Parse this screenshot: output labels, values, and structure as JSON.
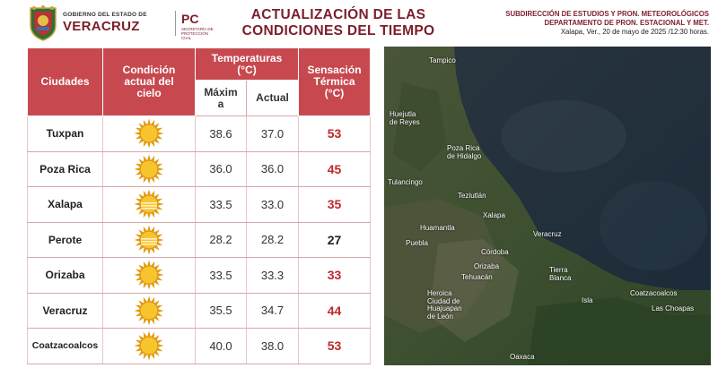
{
  "header": {
    "gob_line1": "GOBIERNO DEL ESTADO DE",
    "gob_line2": "VERACRUZ",
    "pc_mark": "PC",
    "pc_sub": "SECRETARÍA DE PROTECCIÓN CIVIL",
    "title_line1": "ACTUALIZACIÓN DE LAS",
    "title_line2": "CONDICIONES DEL TIEMPO",
    "sub_line1": "SUBDIRECCIÓN DE ESTUDIOS Y PRON. METEOROLÓGICOS",
    "sub_line2": "DEPARTAMENTO DE PRON.  ESTACIONAL Y MET.",
    "date_line": "Xalapa, Ver., 20 de mayo de 2025 /12:30 horas."
  },
  "table": {
    "col_city": "Ciudades",
    "col_condition_1": "Condición",
    "col_condition_2": "actual del",
    "col_condition_3": "cielo",
    "col_temps_1": "Temperaturas",
    "col_temps_2": "(°C)",
    "col_max_1": "Máxim",
    "col_max_2": "a",
    "col_actual": "Actual",
    "col_sens_1": "Sensación",
    "col_sens_2": "Térmica",
    "col_sens_3": "(°C)",
    "rows": [
      {
        "city": "Tuxpan",
        "icon": "sun-icon",
        "max": "38.6",
        "actual": "37.0",
        "sens": "53",
        "sens_color": "#c0272d"
      },
      {
        "city": "Poza Rica",
        "icon": "sun-icon",
        "max": "36.0",
        "actual": "36.0",
        "sens": "45",
        "sens_color": "#c0272d"
      },
      {
        "city": "Xalapa",
        "icon": "hazy-sun-icon",
        "max": "33.5",
        "actual": "33.0",
        "sens": "35",
        "sens_color": "#c0272d"
      },
      {
        "city": "Perote",
        "icon": "hazy-sun-icon",
        "max": "28.2",
        "actual": "28.2",
        "sens": "27",
        "sens_color": "#222222"
      },
      {
        "city": "Orizaba",
        "icon": "sun-icon",
        "max": "33.5",
        "actual": "33.3",
        "sens": "33",
        "sens_color": "#c0272d"
      },
      {
        "city": "Veracruz",
        "icon": "sun-icon",
        "max": "35.5",
        "actual": "34.7",
        "sens": "44",
        "sens_color": "#c0272d"
      },
      {
        "city": "Coatzacoalcos",
        "icon": "sun-icon",
        "max": "40.0",
        "actual": "38.0",
        "sens": "53",
        "sens_color": "#c0272d"
      }
    ]
  },
  "map": {
    "labels": {
      "tampico": "Tampico",
      "huejutla": "Huejutla\nde Reyes",
      "pozarica": "Poza Rica\nde Hidalgo",
      "tulancingo": "Tulancingo",
      "teziutlan": "Teziutlán",
      "xalapa": "Xalapa",
      "huamantla": "Huamantla",
      "puebla": "Puebla",
      "veracruz": "Veracruz",
      "cordoba": "Córdoba",
      "orizaba": "Orizaba",
      "tehuacan": "Tehuacán",
      "tierrablanca": "Tierra\nBlanca",
      "coatzacoalcos": "Coatzacoalcos",
      "isla": "Isla",
      "laschoapas": "Las Choapas",
      "huajuapan": "Heroica\nCiudad de\nHuajuapan\nde León",
      "oaxaca": "Oaxaca"
    }
  }
}
